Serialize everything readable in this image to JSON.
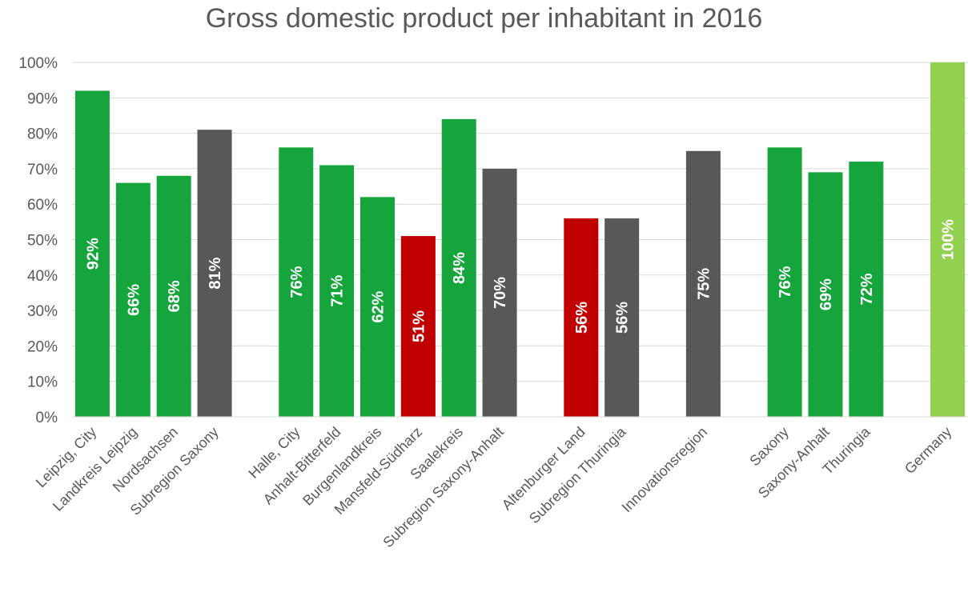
{
  "chart_data": {
    "type": "bar",
    "title": "Gross domestic product per inhabitant in 2016",
    "xlabel": "",
    "ylabel": "",
    "ylim": [
      0,
      100
    ],
    "y_ticks": [
      "0%",
      "10%",
      "20%",
      "30%",
      "40%",
      "50%",
      "60%",
      "70%",
      "80%",
      "90%",
      "100%"
    ],
    "grid": true,
    "legend": "none",
    "bars": [
      {
        "category": "Leipzig, City",
        "value": 92,
        "label": "92%",
        "color": "#16a53c",
        "slot": 0
      },
      {
        "category": "Landkreis Leipzig",
        "value": 66,
        "label": "66%",
        "color": "#16a53c",
        "slot": 1
      },
      {
        "category": "Nordsachsen",
        "value": 68,
        "label": "68%",
        "color": "#16a53c",
        "slot": 2
      },
      {
        "category": "Subregion Saxony",
        "value": 81,
        "label": "81%",
        "color": "#58585a",
        "slot": 3
      },
      {
        "category": "Halle, City",
        "value": 76,
        "label": "76%",
        "color": "#16a53c",
        "slot": 5
      },
      {
        "category": "Anhalt-Bitterfeld",
        "value": 71,
        "label": "71%",
        "color": "#16a53c",
        "slot": 6
      },
      {
        "category": "Burgenlandkreis",
        "value": 62,
        "label": "62%",
        "color": "#16a53c",
        "slot": 7
      },
      {
        "category": "Mansfeld-Südharz",
        "value": 51,
        "label": "51%",
        "color": "#c00000",
        "slot": 8
      },
      {
        "category": "Saalekreis",
        "value": 84,
        "label": "84%",
        "color": "#16a53c",
        "slot": 9
      },
      {
        "category": "Subregion Saxony-Anhalt",
        "value": 70,
        "label": "70%",
        "color": "#58585a",
        "slot": 10
      },
      {
        "category": "Altenburger Land",
        "value": 56,
        "label": "56%",
        "color": "#c00000",
        "slot": 12
      },
      {
        "category": "Subregion Thuringia",
        "value": 56,
        "label": "56%",
        "color": "#58585a",
        "slot": 13
      },
      {
        "category": "Innovationsregion",
        "value": 75,
        "label": "75%",
        "color": "#58585a",
        "slot": 15
      },
      {
        "category": "Saxony",
        "value": 76,
        "label": "76%",
        "color": "#16a53c",
        "slot": 17
      },
      {
        "category": "Saxony-Anhalt",
        "value": 69,
        "label": "69%",
        "color": "#16a53c",
        "slot": 18
      },
      {
        "category": "Thuringia",
        "value": 72,
        "label": "72%",
        "color": "#16a53c",
        "slot": 19
      },
      {
        "category": "Germany",
        "value": 100,
        "label": "100%",
        "color": "#92d050",
        "slot": 21
      }
    ]
  }
}
